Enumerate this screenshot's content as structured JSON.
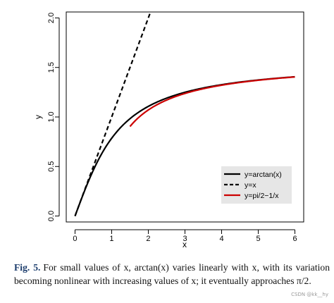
{
  "chart_data": {
    "type": "line",
    "xlabel": "x",
    "ylabel": "y",
    "xlim": [
      -0.24,
      6.24
    ],
    "ylim": [
      -0.06,
      2.06
    ],
    "xticks": [
      "0",
      "1",
      "2",
      "3",
      "4",
      "5",
      "6"
    ],
    "yticks": [
      "0.0",
      "0.5",
      "1.0",
      "1.5",
      "2.0"
    ],
    "legend_position": "bottom-right",
    "series": [
      {
        "name": "y=arctan(x)",
        "color": "#000000",
        "dash": "solid",
        "function": "arctan(x)",
        "x_range": [
          0,
          6
        ]
      },
      {
        "name": "y=x",
        "color": "#000000",
        "dash": "dashed",
        "function": "x",
        "x_range": [
          0,
          2.06
        ]
      },
      {
        "name": "y=pi/2−1/x",
        "color": "#cc0000",
        "dash": "solid",
        "function": "pi/2 - 1/x",
        "x_range": [
          1.5,
          6
        ]
      }
    ]
  },
  "caption": {
    "label": "Fig. 5.",
    "text": "For small values of x, arctan(x) varies linearly with x, with its variation becoming nonlinear with increasing values of x; it eventually approaches π/2."
  },
  "watermark": "CSDN @kk__hy"
}
